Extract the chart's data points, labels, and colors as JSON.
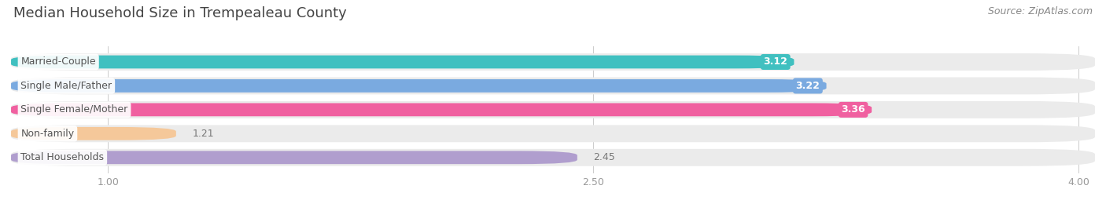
{
  "title": "Median Household Size in Trempealeau County",
  "source": "Source: ZipAtlas.com",
  "categories": [
    "Married-Couple",
    "Single Male/Father",
    "Single Female/Mother",
    "Non-family",
    "Total Households"
  ],
  "values": [
    3.12,
    3.22,
    3.36,
    1.21,
    2.45
  ],
  "bar_colors": [
    "#40c0c0",
    "#7aaae0",
    "#f060a0",
    "#f5c89a",
    "#b09ece"
  ],
  "xlim_left": 0.7,
  "xlim_right": 4.05,
  "xticks": [
    1.0,
    2.5,
    4.0
  ],
  "value_labels": [
    "3.12",
    "3.22",
    "3.36",
    "1.21",
    "2.45"
  ],
  "background_color": "#ffffff",
  "bar_bg_color": "#ebebeb",
  "title_fontsize": 13,
  "label_fontsize": 9,
  "value_fontsize": 9,
  "source_fontsize": 9
}
